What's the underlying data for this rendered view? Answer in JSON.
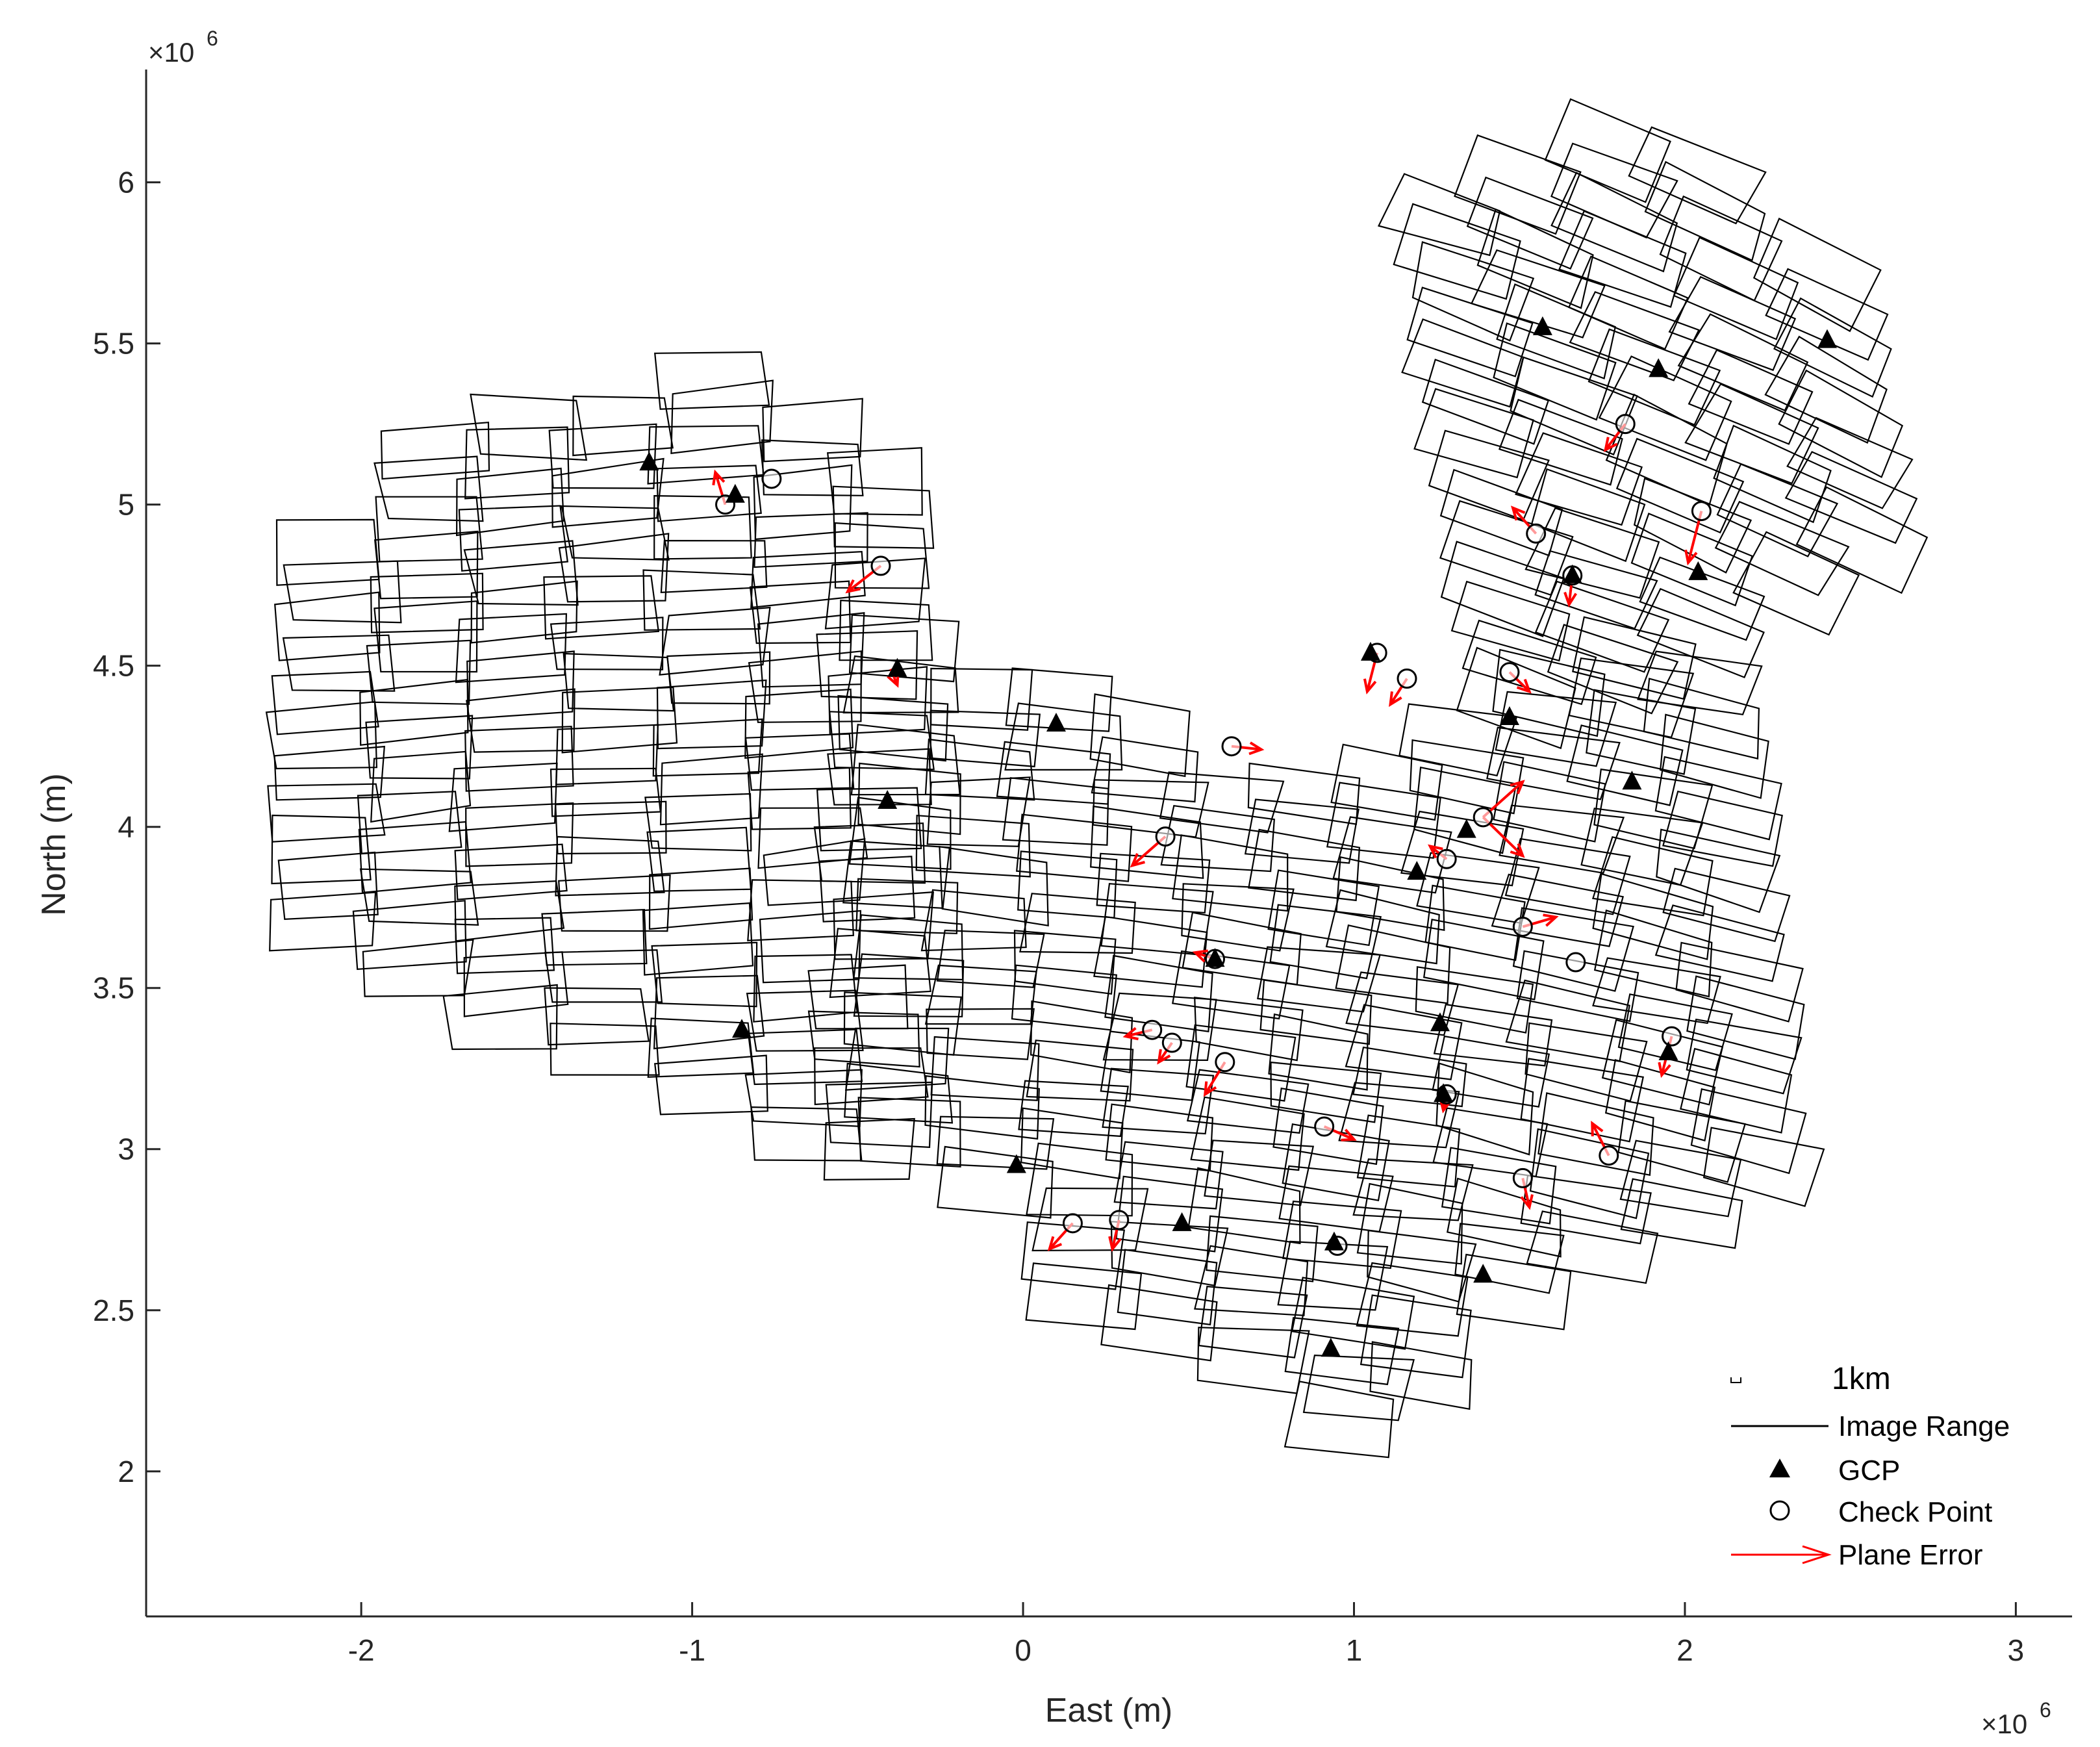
{
  "chart_data": {
    "type": "scatter",
    "title": "",
    "xlabel": "East (m)",
    "ylabel": "North (m)",
    "xlim": [
      -2.65,
      3.17
    ],
    "ylim": [
      1.55,
      6.35
    ],
    "x_multiplier": "×10",
    "x_multiplier_exp": "6",
    "y_multiplier": "×10",
    "y_multiplier_exp": "6",
    "x_ticks": [
      -2,
      -1,
      0,
      1,
      2,
      3
    ],
    "x_tick_labels": [
      "-2",
      "-1",
      "0",
      "1",
      "2",
      "3"
    ],
    "y_ticks": [
      2,
      2.5,
      3,
      3.5,
      4,
      4.5,
      5,
      5.5,
      6
    ],
    "y_tick_labels": [
      "2",
      "2.5",
      "3",
      "3.5",
      "4",
      "4.5",
      "5",
      "5.5",
      "6"
    ],
    "grid": false,
    "legend_position": "bottom-right",
    "legend": [
      {
        "label": "1km",
        "symbol": "scale-bar"
      },
      {
        "label": "Image Range",
        "symbol": "line"
      },
      {
        "label": "GCP",
        "symbol": "triangle"
      },
      {
        "label": "Check Point",
        "symbol": "circle"
      },
      {
        "label": "Plane Error",
        "symbol": "arrow"
      }
    ],
    "colors": {
      "footprint": "#000000",
      "gcp": "#000000",
      "check_point": "#000000",
      "error": "#ff0000"
    },
    "gcp": [
      [
        -1.13,
        5.13
      ],
      [
        -0.87,
        5.03
      ],
      [
        -0.38,
        4.49
      ],
      [
        -0.41,
        4.08
      ],
      [
        -0.85,
        3.37
      ],
      [
        0.1,
        4.32
      ],
      [
        -0.02,
        2.95
      ],
      [
        0.48,
        2.77
      ],
      [
        0.58,
        3.59
      ],
      [
        0.94,
        2.71
      ],
      [
        0.93,
        2.38
      ],
      [
        1.05,
        4.54
      ],
      [
        1.19,
        3.86
      ],
      [
        1.26,
        3.39
      ],
      [
        1.27,
        3.17
      ],
      [
        1.34,
        3.99
      ],
      [
        1.39,
        2.61
      ],
      [
        1.47,
        4.34
      ],
      [
        1.57,
        5.55
      ],
      [
        1.66,
        4.78
      ],
      [
        1.84,
        4.14
      ],
      [
        1.92,
        5.42
      ],
      [
        2.04,
        4.79
      ],
      [
        1.95,
        3.3
      ],
      [
        2.43,
        5.51
      ]
    ],
    "check_points": [
      [
        -0.9,
        5.0
      ],
      [
        -0.76,
        5.08
      ],
      [
        -0.43,
        4.81
      ],
      [
        0.63,
        4.25
      ],
      [
        0.43,
        3.97
      ],
      [
        0.39,
        3.37
      ],
      [
        0.45,
        3.33
      ],
      [
        0.61,
        3.27
      ],
      [
        0.58,
        3.59
      ],
      [
        0.91,
        3.07
      ],
      [
        0.95,
        2.7
      ],
      [
        0.15,
        2.77
      ],
      [
        0.29,
        2.78
      ],
      [
        1.07,
        4.54
      ],
      [
        1.16,
        4.46
      ],
      [
        1.28,
        3.9
      ],
      [
        1.39,
        4.03
      ],
      [
        1.47,
        4.48
      ],
      [
        1.51,
        3.69
      ],
      [
        1.51,
        2.91
      ],
      [
        1.67,
        3.58
      ],
      [
        1.77,
        2.98
      ],
      [
        1.96,
        3.35
      ],
      [
        1.55,
        4.91
      ],
      [
        2.05,
        4.98
      ],
      [
        1.82,
        5.25
      ],
      [
        1.66,
        4.78
      ],
      [
        1.28,
        3.17
      ]
    ],
    "plane_errors": [
      [
        -0.9,
        5.0,
        -0.93,
        5.1
      ],
      [
        -0.43,
        4.81,
        -0.53,
        4.73
      ],
      [
        -0.4,
        4.49,
        -0.38,
        4.44
      ],
      [
        0.63,
        4.25,
        0.72,
        4.24
      ],
      [
        0.43,
        3.97,
        0.33,
        3.88
      ],
      [
        0.58,
        3.59,
        0.52,
        3.61
      ],
      [
        0.39,
        3.37,
        0.31,
        3.35
      ],
      [
        0.45,
        3.33,
        0.41,
        3.27
      ],
      [
        0.61,
        3.27,
        0.55,
        3.17
      ],
      [
        0.91,
        3.07,
        1.0,
        3.03
      ],
      [
        0.15,
        2.77,
        0.08,
        2.69
      ],
      [
        0.29,
        2.78,
        0.27,
        2.69
      ],
      [
        1.07,
        4.54,
        1.04,
        4.42
      ],
      [
        1.16,
        4.46,
        1.11,
        4.38
      ],
      [
        1.39,
        4.03,
        1.51,
        4.14
      ],
      [
        1.39,
        4.03,
        1.51,
        3.91
      ],
      [
        1.28,
        3.9,
        1.23,
        3.94
      ],
      [
        1.47,
        4.48,
        1.53,
        4.42
      ],
      [
        1.51,
        3.69,
        1.61,
        3.72
      ],
      [
        1.51,
        2.91,
        1.53,
        2.82
      ],
      [
        1.77,
        2.98,
        1.72,
        3.08
      ],
      [
        1.96,
        3.35,
        1.93,
        3.23
      ],
      [
        1.55,
        4.91,
        1.48,
        4.99
      ],
      [
        2.05,
        4.98,
        2.01,
        4.82
      ],
      [
        1.82,
        5.25,
        1.76,
        5.17
      ],
      [
        1.66,
        4.78,
        1.65,
        4.69
      ],
      [
        1.28,
        3.17,
        1.27,
        3.12
      ]
    ]
  }
}
